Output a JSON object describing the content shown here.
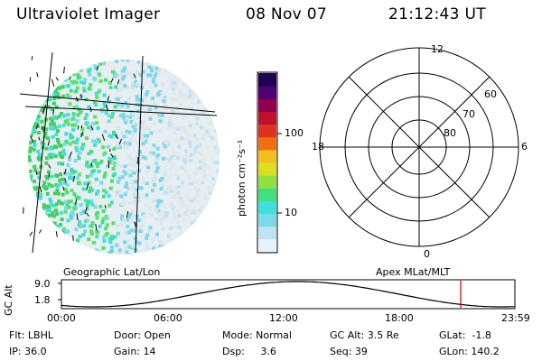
{
  "header": {
    "instrument": "Ultraviolet Imager",
    "date": "08 Nov 07",
    "time": "21:12:43 UT"
  },
  "colorbar": {
    "unit_label": "photon cm⁻²s⁻¹",
    "ticks": [
      "100",
      "10"
    ],
    "scale": "log",
    "colors": [
      "#e8f2f8",
      "#bfe3f0",
      "#7fd8ea",
      "#3fe0d8",
      "#40e080",
      "#90e040",
      "#d8e020",
      "#f0c020",
      "#f07010",
      "#e03020",
      "#c01030",
      "#900050",
      "#500070",
      "#200050"
    ]
  },
  "polar_plot": {
    "mlt_labels": [
      "12",
      "18",
      "6",
      "0"
    ],
    "mlat_labels": [
      "60",
      "70",
      "80"
    ]
  },
  "map_labels": {
    "left": "Geographic Lat/Lon",
    "right": "Apex MLat/MLT"
  },
  "altitude_strip": {
    "ylabel": "GC Alt",
    "y_ticks": [
      "9.0",
      "1.8"
    ],
    "x_ticks": [
      "00:00",
      "06:00",
      "12:00",
      "18:00",
      "23:59"
    ],
    "current_marker_time": "21:12"
  },
  "status": {
    "row1": {
      "flt": "Flt: LBHL",
      "door": "Door: Open",
      "mode": "Mode: Normal",
      "gc_alt": "GC Alt: 3.5 Re",
      "glat": "GLat:  -1.8"
    },
    "row2": {
      "ip": "IP: 36.0",
      "gain": "Gain: 14",
      "dsp": "Dsp:     3.6",
      "seq": "Seq: 39",
      "glon": "GLon: 140.2"
    }
  }
}
